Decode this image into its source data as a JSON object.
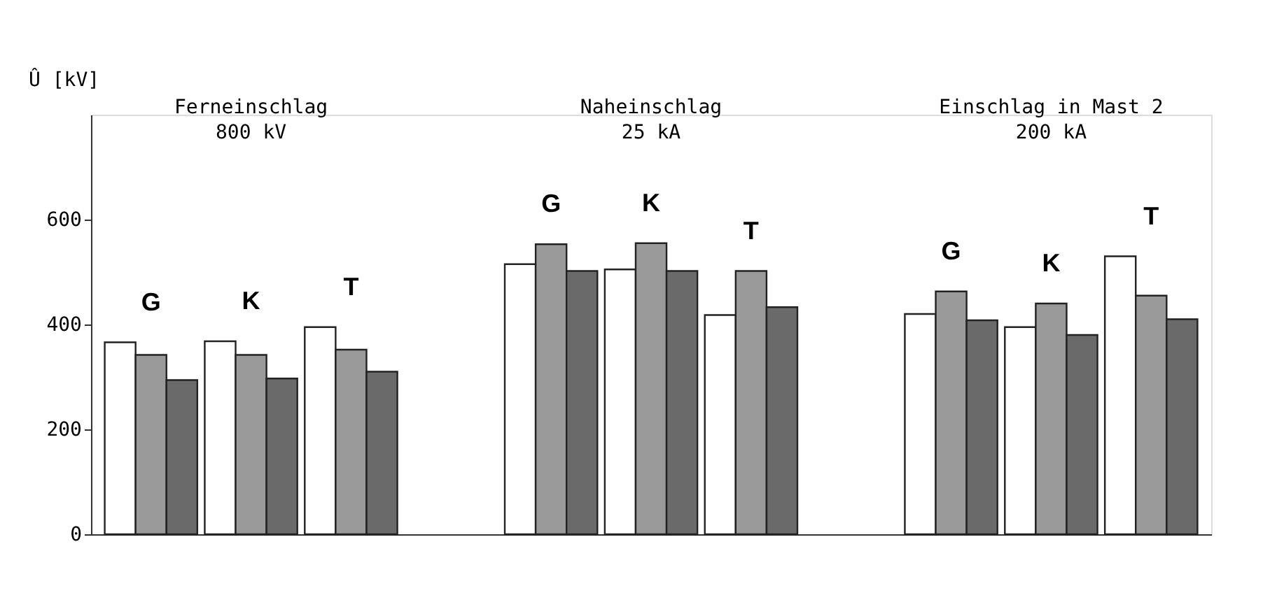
{
  "chart_data": {
    "type": "bar",
    "ylabel": "Û [kV]",
    "categories": [
      "G",
      "K",
      "T",
      null,
      "G",
      "K",
      "T",
      null,
      "G",
      "K",
      "T"
    ],
    "series": [
      {
        "color": "#ffffff",
        "values": [
          366,
          368,
          395,
          null,
          515,
          505,
          418,
          null,
          420,
          395,
          530
        ]
      },
      {
        "color": "#9a9a9a",
        "values": [
          342,
          342,
          352,
          null,
          553,
          555,
          502,
          null,
          463,
          440,
          455
        ]
      },
      {
        "color": "#6a6a6a",
        "values": [
          294,
          297,
          310,
          null,
          502,
          502,
          433,
          null,
          408,
          380,
          410
        ]
      }
    ],
    "ylim": [
      0,
      800
    ],
    "yticks": [
      0,
      200,
      400,
      600
    ],
    "grid": false,
    "legend": false,
    "tick_labels": "y",
    "annotations": [
      "Ferneinschlag\n800 kV",
      "Naheinschlag\n25 kA",
      "Einschlag in Mast 2\n200 kA"
    ]
  }
}
